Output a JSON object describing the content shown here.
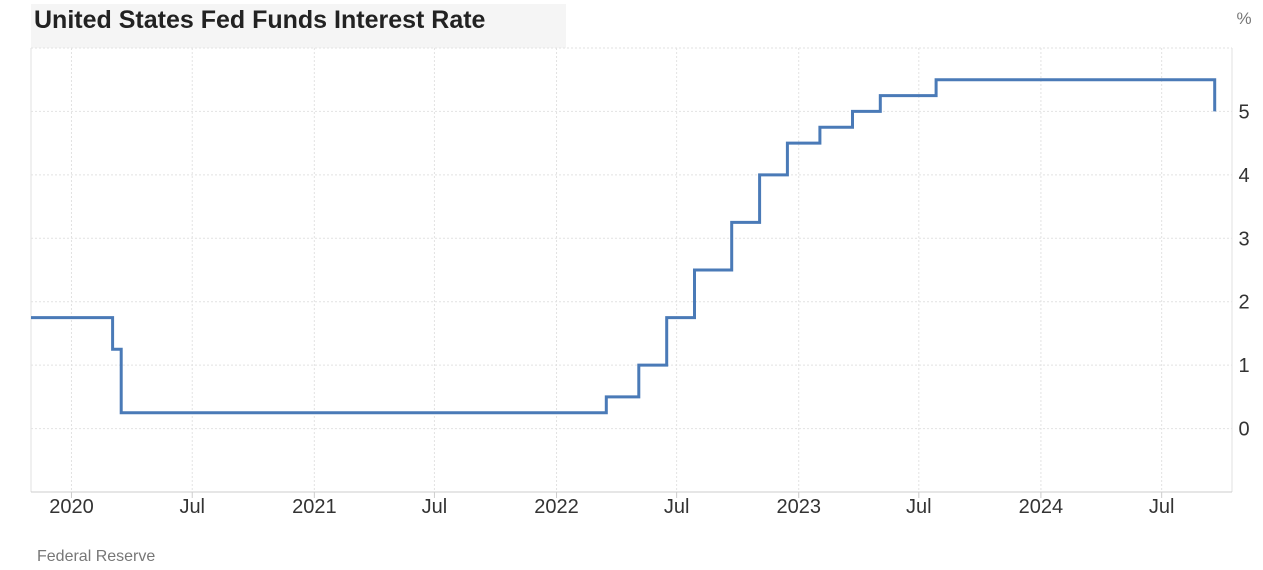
{
  "title": "United States Fed Funds Interest Rate",
  "source": "Federal Reserve",
  "unit_label": "%",
  "colors": {
    "line": "#4a7ab7",
    "grid": "#e2e2e2",
    "axis": "#cccccc",
    "text": "#333333",
    "title_bg": "#f5f5f5"
  },
  "chart_data": {
    "type": "line",
    "step": true,
    "grid": true,
    "y_axis_position": "right",
    "xlim": [
      "2019-11-01",
      "2024-10-15"
    ],
    "ylim": [
      -1,
      6
    ],
    "x_ticks": [
      {
        "date": "2020-01-01",
        "label": "2020"
      },
      {
        "date": "2020-07-01",
        "label": "Jul"
      },
      {
        "date": "2021-01-01",
        "label": "2021"
      },
      {
        "date": "2021-07-01",
        "label": "Jul"
      },
      {
        "date": "2022-01-01",
        "label": "2022"
      },
      {
        "date": "2022-07-01",
        "label": "Jul"
      },
      {
        "date": "2023-01-01",
        "label": "2023"
      },
      {
        "date": "2023-07-01",
        "label": "Jul"
      },
      {
        "date": "2024-01-01",
        "label": "2024"
      },
      {
        "date": "2024-07-01",
        "label": "Jul"
      }
    ],
    "y_ticks": [
      0,
      1,
      2,
      3,
      4,
      5
    ],
    "series": [
      {
        "points": [
          {
            "x": "2019-11-01",
            "y": 1.75
          },
          {
            "x": "2020-03-03",
            "y": 1.25
          },
          {
            "x": "2020-03-16",
            "y": 0.25
          },
          {
            "x": "2022-03-17",
            "y": 0.5
          },
          {
            "x": "2022-05-05",
            "y": 1.0
          },
          {
            "x": "2022-06-16",
            "y": 1.75
          },
          {
            "x": "2022-07-28",
            "y": 2.5
          },
          {
            "x": "2022-09-22",
            "y": 3.25
          },
          {
            "x": "2022-11-03",
            "y": 4.0
          },
          {
            "x": "2022-12-15",
            "y": 4.5
          },
          {
            "x": "2023-02-02",
            "y": 4.75
          },
          {
            "x": "2023-03-23",
            "y": 5.0
          },
          {
            "x": "2023-05-04",
            "y": 5.25
          },
          {
            "x": "2023-07-27",
            "y": 5.5
          },
          {
            "x": "2024-09-19",
            "y": 5.0
          }
        ]
      }
    ]
  }
}
